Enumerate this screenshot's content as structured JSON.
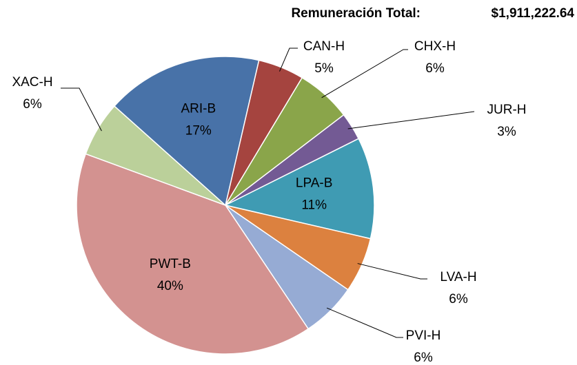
{
  "chart_data": {
    "type": "pie",
    "title": "Remuneración Total:",
    "total": "$1,911,222.64",
    "categories": [
      "CAN-H",
      "CHX-H",
      "JUR-H",
      "LPA-B",
      "LVA-H",
      "PVI-H",
      "PWT-B",
      "XAC-H",
      "ARI-B"
    ],
    "values": [
      5,
      6,
      3,
      11,
      6,
      6,
      40,
      6,
      17
    ],
    "value_labels": [
      "5%",
      "6%",
      "3%",
      "11%",
      "6%",
      "6%",
      "40%",
      "6%",
      "17%"
    ],
    "colors": [
      "#a5443f",
      "#8aa54a",
      "#735a94",
      "#3f9bb3",
      "#dc813f",
      "#96abd4",
      "#d39290",
      "#bbd09a",
      "#4872a8"
    ]
  }
}
